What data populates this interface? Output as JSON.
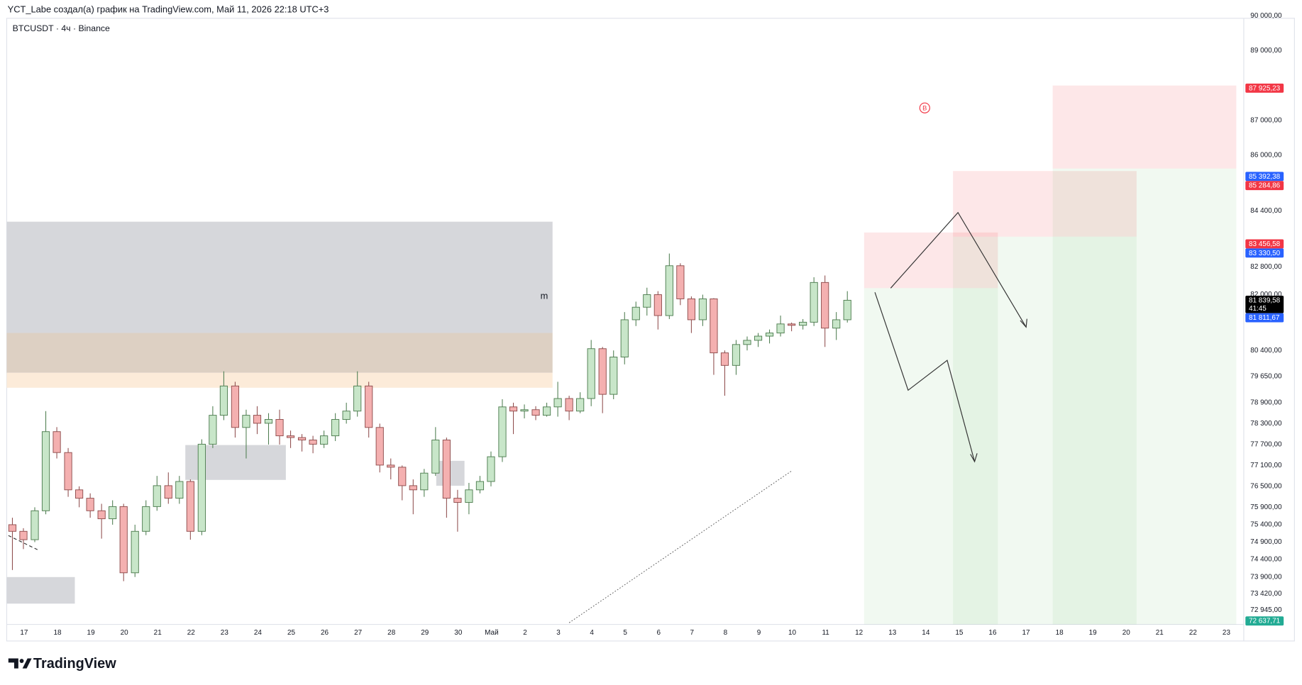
{
  "header": "YCT_Labe создал(а) график на TradingView.com, Май 11, 2026 22:18 UTC+3",
  "brand": "TradingView",
  "annotations": {
    "zone_label": "m",
    "badge": "B"
  },
  "chart_data": {
    "type": "candlestick",
    "title": "BTCUSDT · 4ч · Binance",
    "up_color": "#c8e6c9",
    "up_border": "#4e7d50",
    "down_color": "#f4b0b0",
    "down_border": "#8f4d4d",
    "x": [
      -0.35,
      -0.02,
      0.32,
      0.65,
      0.98,
      1.32,
      1.65,
      1.98,
      2.32,
      2.65,
      2.98,
      3.32,
      3.65,
      3.98,
      4.32,
      4.65,
      4.98,
      5.32,
      5.65,
      5.98,
      6.32,
      6.65,
      6.98,
      7.32,
      7.65,
      7.98,
      8.32,
      8.65,
      8.98,
      9.32,
      9.65,
      9.98,
      10.32,
      10.65,
      10.98,
      11.32,
      11.65,
      11.98,
      12.32,
      12.65,
      12.98,
      13.32,
      13.65,
      13.98,
      14.32,
      14.65,
      14.98,
      15.32,
      15.65,
      15.98,
      16.32,
      16.65,
      16.98,
      17.32,
      17.65,
      17.98,
      18.32,
      18.65,
      18.98,
      19.32,
      19.65,
      19.98,
      20.32,
      20.65,
      20.98,
      21.32,
      21.65,
      21.98,
      22.32,
      22.65,
      22.98,
      23.32,
      23.65,
      23.98,
      24.32,
      24.65
    ],
    "open": [
      75400,
      75210,
      74970,
      75800,
      78070,
      77470,
      76400,
      76160,
      75800,
      75570,
      75920,
      74020,
      75210,
      75920,
      76520,
      76160,
      76640,
      75210,
      77710,
      78540,
      79380,
      78190,
      78540,
      78310,
      78420,
      77950,
      77900,
      77830,
      77710,
      77950,
      78420,
      78660,
      79380,
      78190,
      77110,
      77050,
      76520,
      76400,
      76880,
      77830,
      76160,
      76040,
      76400,
      76640,
      77350,
      78780,
      78660,
      78700,
      78540,
      78780,
      79020,
      78660,
      79020,
      80450,
      79140,
      80210,
      81280,
      81640,
      82000,
      81400,
      82830,
      81880,
      81280,
      81880,
      80330,
      79970,
      80570,
      80690,
      80810,
      80900,
      81160,
      81120,
      81210,
      82350,
      81040,
      81280
    ],
    "high": [
      75600,
      75300,
      75900,
      78660,
      78200,
      77600,
      76500,
      76300,
      76000,
      76100,
      76000,
      75400,
      76100,
      76800,
      76900,
      76800,
      76700,
      77850,
      78800,
      79800,
      79500,
      78700,
      78800,
      78600,
      78700,
      78100,
      78000,
      77950,
      78100,
      78600,
      78900,
      79800,
      79500,
      78300,
      77300,
      77100,
      76700,
      77000,
      78200,
      77900,
      76400,
      76600,
      76800,
      77500,
      79000,
      78900,
      78850,
      78800,
      78900,
      79500,
      79100,
      79200,
      80700,
      80500,
      80400,
      81500,
      81800,
      82200,
      82100,
      83180,
      82900,
      81950,
      82000,
      81900,
      80400,
      80700,
      80800,
      80900,
      81000,
      81400,
      81200,
      81300,
      82500,
      82550,
      81500,
      82100
    ],
    "low": [
      74100,
      74700,
      74900,
      75700,
      77300,
      76200,
      75900,
      75600,
      75000,
      75400,
      73780,
      73900,
      75100,
      75800,
      76000,
      76000,
      74970,
      75100,
      77600,
      78400,
      77900,
      77300,
      78000,
      77700,
      77700,
      77600,
      77500,
      77450,
      77600,
      77800,
      78300,
      78500,
      77900,
      76900,
      76700,
      76100,
      75700,
      76200,
      76800,
      75600,
      75200,
      75700,
      76300,
      76500,
      77200,
      78000,
      78450,
      78400,
      78500,
      78500,
      78400,
      78600,
      78800,
      78600,
      79000,
      80000,
      81100,
      81400,
      81000,
      81300,
      81700,
      80900,
      81100,
      79700,
      79100,
      79700,
      80400,
      80500,
      80600,
      80800,
      80950,
      81000,
      81100,
      80500,
      80700,
      81200
    ],
    "close": [
      75210,
      74970,
      75800,
      78070,
      77470,
      76400,
      76160,
      75800,
      75570,
      75920,
      74020,
      75210,
      75920,
      76520,
      76160,
      76640,
      75210,
      77710,
      78540,
      79380,
      78190,
      78540,
      78310,
      78420,
      77950,
      77900,
      77830,
      77710,
      77950,
      78420,
      78660,
      79380,
      78190,
      77110,
      77050,
      76520,
      76400,
      76880,
      77830,
      76160,
      76040,
      76400,
      76640,
      77350,
      78780,
      78660,
      78700,
      78540,
      78780,
      79020,
      78660,
      79020,
      80450,
      79140,
      80210,
      81280,
      81640,
      82000,
      81400,
      82830,
      81880,
      81280,
      81880,
      80330,
      79970,
      80570,
      80690,
      80810,
      80900,
      81160,
      81120,
      81210,
      82350,
      81040,
      81280,
      81840
    ],
    "xlim": [
      -0.52,
      36.52
    ],
    "xticks": [
      {
        "value": 0,
        "label": "17"
      },
      {
        "value": 1,
        "label": "18"
      },
      {
        "value": 2,
        "label": "19"
      },
      {
        "value": 3,
        "label": "20"
      },
      {
        "value": 4,
        "label": "21"
      },
      {
        "value": 5,
        "label": "22"
      },
      {
        "value": 6,
        "label": "23"
      },
      {
        "value": 7,
        "label": "24"
      },
      {
        "value": 8,
        "label": "25"
      },
      {
        "value": 9,
        "label": "26"
      },
      {
        "value": 10,
        "label": "27"
      },
      {
        "value": 11,
        "label": "28"
      },
      {
        "value": 12,
        "label": "29"
      },
      {
        "value": 13,
        "label": "30"
      },
      {
        "value": 14,
        "label": "Май"
      },
      {
        "value": 15,
        "label": "2"
      },
      {
        "value": 16,
        "label": "3"
      },
      {
        "value": 17,
        "label": "4"
      },
      {
        "value": 18,
        "label": "5"
      },
      {
        "value": 19,
        "label": "6"
      },
      {
        "value": 20,
        "label": "7"
      },
      {
        "value": 21,
        "label": "8"
      },
      {
        "value": 22,
        "label": "9"
      },
      {
        "value": 23,
        "label": "10"
      },
      {
        "value": 24,
        "label": "11"
      },
      {
        "value": 25,
        "label": "12"
      },
      {
        "value": 26,
        "label": "13"
      },
      {
        "value": 27,
        "label": "14"
      },
      {
        "value": 28,
        "label": "15"
      },
      {
        "value": 29,
        "label": "16"
      },
      {
        "value": 30,
        "label": "17"
      },
      {
        "value": 31,
        "label": "18"
      },
      {
        "value": 32,
        "label": "19"
      },
      {
        "value": 33,
        "label": "20"
      },
      {
        "value": 34,
        "label": "21"
      },
      {
        "value": 35,
        "label": "22"
      },
      {
        "value": 36,
        "label": "23"
      }
    ],
    "ylim": [
      72540,
      89930
    ],
    "yticks": [
      {
        "value": 90000,
        "label": "90 000,00"
      },
      {
        "value": 89000,
        "label": "89 000,00"
      },
      {
        "value": 87000,
        "label": "87 000,00"
      },
      {
        "value": 86000,
        "label": "86 000,00"
      },
      {
        "value": 84400,
        "label": "84 400,00"
      },
      {
        "value": 82800,
        "label": "82 800,00"
      },
      {
        "value": 82000,
        "label": "82 000,00"
      },
      {
        "value": 80400,
        "label": "80 400,00"
      },
      {
        "value": 79650,
        "label": "79 650,00"
      },
      {
        "value": 78900,
        "label": "78 900,00"
      },
      {
        "value": 78300,
        "label": "78 300,00"
      },
      {
        "value": 77700,
        "label": "77 700,00"
      },
      {
        "value": 77100,
        "label": "77 100,00"
      },
      {
        "value": 76500,
        "label": "76 500,00"
      },
      {
        "value": 75900,
        "label": "75 900,00"
      },
      {
        "value": 75400,
        "label": "75 400,00"
      },
      {
        "value": 74900,
        "label": "74 900,00"
      },
      {
        "value": 74400,
        "label": "74 400,00"
      },
      {
        "value": 73900,
        "label": "73 900,00"
      },
      {
        "value": 73420,
        "label": "73 420,00"
      },
      {
        "value": 72945,
        "label": "72 945,00"
      }
    ],
    "grid": false,
    "price_labels": [
      {
        "value": 87925.23,
        "label": "87 925,23",
        "color": "#f23645"
      },
      {
        "value": 85392.38,
        "label": "85 392,38",
        "color": "#2962ff"
      },
      {
        "value": 85284.86,
        "label": "85 284,86",
        "color": "#f23645"
      },
      {
        "value": 83456.58,
        "label": "83 456,58",
        "color": "#f23645"
      },
      {
        "value": 83330.5,
        "label": "83 330,50",
        "color": "#2962ff"
      },
      {
        "value": 81839.58,
        "label": "81 839,58",
        "color": "#000000",
        "countdown": "41:45"
      },
      {
        "value": 81811.67,
        "label": "81 811,67",
        "color": "#2962ff"
      },
      {
        "value": 72637.71,
        "label": "72 637,71",
        "color": "#22ab94"
      }
    ]
  }
}
